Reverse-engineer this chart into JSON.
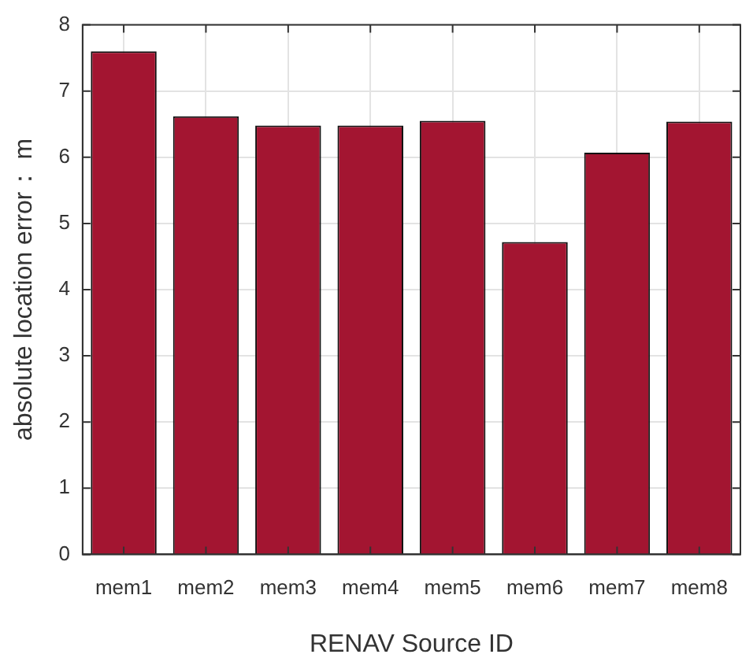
{
  "chart_data": {
    "type": "bar",
    "xlabel": "RENAV Source ID",
    "ylabel": "absolute location error： m",
    "categories": [
      "mem1",
      "mem2",
      "mem3",
      "mem4",
      "mem5",
      "mem6",
      "mem7",
      "mem8"
    ],
    "values": [
      7.6,
      6.62,
      6.48,
      6.48,
      6.55,
      4.72,
      6.07,
      6.54
    ],
    "color": "#a31531",
    "ylim": [
      0,
      8
    ],
    "yticks": [
      0,
      1,
      2,
      3,
      4,
      5,
      6,
      7,
      8
    ],
    "grid": true
  }
}
